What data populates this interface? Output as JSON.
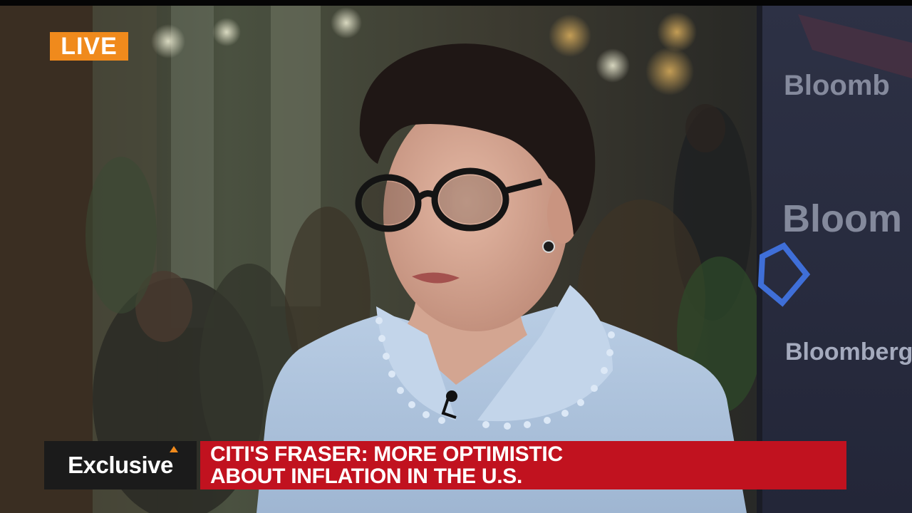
{
  "live_badge": {
    "text": "LIVE",
    "color": "#f08a1c"
  },
  "backdrop": {
    "brand_text_1": "Bloomb",
    "brand_text_2": "Bloom",
    "brand_text_3": "Bloomberg"
  },
  "lower_third": {
    "tag_label": "Exclusive",
    "headline_line_1": "CITI'S FRASER: MORE OPTIMISTIC",
    "headline_line_2": "ABOUT INFLATION IN THE U.S.",
    "headline_color": "#c1121f"
  }
}
